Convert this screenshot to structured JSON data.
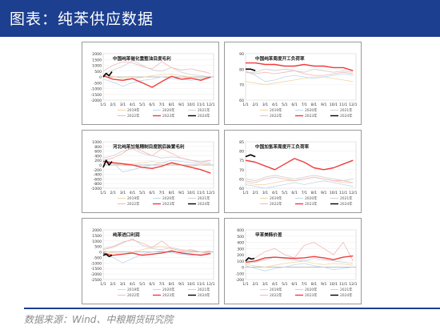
{
  "header": {
    "title": "图表：纯苯供应数据",
    "bg_color": "#1d3f8f"
  },
  "footer": {
    "source": "数据来源：Wind、中粮期货研究院"
  },
  "months": [
    "1/1",
    "2/1",
    "3/1",
    "4/1",
    "5/1",
    "6/1",
    "7/1",
    "8/1",
    "9/1",
    "10/1",
    "11/1",
    "12/1"
  ],
  "series_colors": {
    "2019年": "#f2d4a6",
    "2020年": "#bcd7ee",
    "2021年": "#d0d0d0",
    "2022年": "#f4b6b6",
    "2023年": "#f03c3c",
    "2024年": "#000000"
  },
  "chart_data": [
    {
      "type": "line",
      "title": "中国纯苯催化重整油目度毛利",
      "ylim": [
        -2000,
        2000
      ],
      "yticks": [
        2000,
        1500,
        1000,
        500,
        0,
        -500,
        -1000,
        -1500,
        -2000
      ],
      "legend": [
        "2019年",
        "2020年",
        "2021年",
        "2022年",
        "2023年",
        "2024年"
      ],
      "series": [
        {
          "name": "2019年",
          "x": [
            0,
            1,
            2,
            3,
            4,
            5,
            6,
            7,
            8,
            9,
            10,
            11
          ],
          "values": [
            150,
            50,
            -150,
            -150,
            -50,
            100,
            200,
            250,
            100,
            0,
            -100,
            -50
          ]
        },
        {
          "name": "2020年",
          "x": [
            0,
            1,
            2,
            3,
            4,
            5,
            6,
            7,
            8,
            9,
            10,
            11
          ],
          "values": [
            -200,
            -450,
            -800,
            -500,
            -300,
            -200,
            0,
            -150,
            -200,
            -300,
            -200,
            -100
          ]
        },
        {
          "name": "2021年",
          "x": [
            0,
            1,
            2,
            3,
            4,
            5,
            6,
            7,
            8,
            9,
            10,
            11
          ],
          "values": [
            200,
            600,
            900,
            1400,
            1000,
            600,
            500,
            800,
            400,
            200,
            100,
            0
          ]
        },
        {
          "name": "2022年",
          "x": [
            0,
            1,
            2,
            3,
            4,
            5,
            6,
            7,
            8,
            9,
            10,
            11
          ],
          "values": [
            500,
            1000,
            1300,
            1200,
            900,
            700,
            1300,
            800,
            600,
            700,
            500,
            300
          ]
        },
        {
          "name": "2023年",
          "x": [
            0,
            1,
            2,
            3,
            4,
            5,
            6,
            7,
            8,
            9,
            10,
            11
          ],
          "values": [
            100,
            -200,
            -300,
            -150,
            -500,
            -900,
            -400,
            50,
            -200,
            -100,
            -300,
            0
          ]
        },
        {
          "name": "2024年",
          "x": [
            0,
            0.3,
            0.6,
            0.9
          ],
          "values": [
            0,
            300,
            100,
            450
          ]
        }
      ]
    },
    {
      "type": "line",
      "title": "中国纯苯周度开工负荷率",
      "ylim": [
        60,
        90
      ],
      "yticks": [
        90,
        80,
        70,
        60
      ],
      "legend": [
        "2019年",
        "2020年",
        "2021年",
        "2022年",
        "2023年",
        "2024年"
      ],
      "series": [
        {
          "name": "2019年",
          "x": [
            0,
            1,
            2,
            3,
            4,
            5,
            6,
            7,
            8,
            9,
            10,
            11
          ],
          "values": [
            72,
            71,
            70,
            71,
            72,
            73,
            74,
            75,
            75,
            74,
            73,
            72
          ]
        },
        {
          "name": "2020年",
          "x": [
            0,
            1,
            2,
            3,
            4,
            5,
            6,
            7,
            8,
            9,
            10,
            11
          ],
          "values": [
            79,
            76,
            72,
            73,
            75,
            76,
            75,
            74,
            75,
            76,
            77,
            76
          ]
        },
        {
          "name": "2021年",
          "x": [
            0,
            1,
            2,
            3,
            4,
            5,
            6,
            7,
            8,
            9,
            10,
            11
          ],
          "values": [
            78,
            78,
            80,
            79,
            80,
            79,
            78,
            80,
            79,
            78,
            79,
            78
          ]
        },
        {
          "name": "2022年",
          "x": [
            0,
            1,
            2,
            3,
            4,
            5,
            6,
            7,
            8,
            9,
            10,
            11
          ],
          "values": [
            78,
            77,
            78,
            77,
            78,
            79,
            77,
            76,
            76,
            77,
            78,
            77
          ]
        },
        {
          "name": "2023年",
          "x": [
            0,
            1,
            2,
            3,
            4,
            5,
            6,
            7,
            8,
            9,
            10,
            11
          ],
          "values": [
            84,
            84,
            83,
            83,
            82,
            82,
            83,
            82,
            82,
            81,
            81,
            79
          ]
        },
        {
          "name": "2024年",
          "x": [
            0,
            0.5,
            1
          ],
          "values": [
            80,
            80,
            79
          ]
        }
      ]
    },
    {
      "type": "line",
      "title": "河北纯苯加氢精制目度脱后装置毛利",
      "ylim": [
        -1000,
        1000
      ],
      "yticks": [
        1000,
        800,
        600,
        400,
        200,
        0,
        -200,
        -400,
        -600,
        -800,
        -1000
      ],
      "legend": [
        "2019年",
        "2020年",
        "2021年",
        "2022年",
        "2023年",
        "2024年"
      ],
      "series": [
        {
          "name": "2019年",
          "x": [
            0,
            1,
            2,
            3,
            4,
            5,
            6,
            7,
            8,
            9,
            10,
            11
          ],
          "values": [
            100,
            50,
            0,
            50,
            100,
            150,
            100,
            50,
            0,
            -50,
            0,
            50
          ]
        },
        {
          "name": "2020年",
          "x": [
            0,
            1,
            2,
            3,
            4,
            5,
            6,
            7,
            8,
            9,
            10,
            11
          ],
          "values": [
            200,
            100,
            -300,
            -200,
            -100,
            0,
            100,
            200,
            150,
            100,
            50,
            100
          ]
        },
        {
          "name": "2021年",
          "x": [
            0,
            1,
            2,
            3,
            4,
            5,
            6,
            7,
            8,
            9,
            10,
            11
          ],
          "values": [
            300,
            400,
            600,
            700,
            500,
            400,
            300,
            350,
            300,
            200,
            150,
            200
          ]
        },
        {
          "name": "2022年",
          "x": [
            0,
            1,
            2,
            3,
            4,
            5,
            6,
            7,
            8,
            9,
            10,
            11
          ],
          "values": [
            200,
            300,
            500,
            800,
            600,
            400,
            700,
            500,
            300,
            200,
            100,
            200
          ]
        },
        {
          "name": "2023年",
          "x": [
            0,
            1,
            2,
            3,
            4,
            5,
            6,
            7,
            8,
            9,
            10,
            11
          ],
          "values": [
            150,
            100,
            50,
            0,
            -100,
            -150,
            -50,
            100,
            0,
            -100,
            -200,
            -350
          ]
        },
        {
          "name": "2024年",
          "x": [
            0,
            0.3,
            0.6,
            0.9
          ],
          "values": [
            -100,
            200,
            0,
            150
          ]
        }
      ]
    },
    {
      "type": "line",
      "title": "中国加氢苯周度开工负荷率",
      "ylim": [
        60,
        85
      ],
      "yticks": [
        85,
        80,
        75,
        70,
        65,
        60
      ],
      "legend": [
        "2019年",
        "2020年",
        "2021年",
        "2022年",
        "2023年",
        "2024年"
      ],
      "series": [
        {
          "name": "2019年",
          "x": [
            0,
            1,
            2,
            3,
            4,
            5,
            6,
            7,
            8,
            9,
            10,
            11
          ],
          "values": [
            63,
            62,
            62,
            63,
            64,
            64,
            65,
            66,
            65,
            64,
            63,
            63
          ]
        },
        {
          "name": "2020年",
          "x": [
            0,
            1,
            2,
            3,
            4,
            5,
            6,
            7,
            8,
            9,
            10,
            11
          ],
          "values": [
            62,
            61,
            60,
            61,
            62,
            63,
            62,
            63,
            64,
            63,
            62,
            61
          ]
        },
        {
          "name": "2021年",
          "x": [
            0,
            1,
            2,
            3,
            4,
            5,
            6,
            7,
            8,
            9,
            10,
            11
          ],
          "values": [
            65,
            64,
            66,
            67,
            66,
            65,
            66,
            67,
            66,
            65,
            64,
            65
          ]
        },
        {
          "name": "2022年",
          "x": [
            0,
            1,
            2,
            3,
            4,
            5,
            6,
            7,
            8,
            9,
            10,
            11
          ],
          "values": [
            64,
            63,
            65,
            66,
            65,
            64,
            65,
            66,
            65,
            64,
            64,
            63
          ]
        },
        {
          "name": "2023年",
          "x": [
            0,
            1,
            2,
            3,
            4,
            5,
            6,
            7,
            8,
            9,
            10,
            11
          ],
          "values": [
            75,
            74,
            72,
            70,
            73,
            76,
            74,
            71,
            70,
            71,
            73,
            75
          ]
        },
        {
          "name": "2024年",
          "x": [
            0,
            0.5,
            1
          ],
          "values": [
            77,
            78,
            77
          ]
        }
      ]
    },
    {
      "type": "line",
      "title": "纯苯进口利润",
      "ylim": [
        -2500,
        2000
      ],
      "yticks": [
        2000,
        1500,
        1000,
        500,
        0,
        -500,
        -1000,
        -1500,
        -2000,
        -2500
      ],
      "legend": [
        "2019年",
        "2020年",
        "2021年",
        "2022年",
        "2023年",
        "2024年"
      ],
      "series": [
        {
          "name": "2019年",
          "x": [
            0,
            1,
            2,
            3,
            4,
            5,
            6,
            7,
            8,
            9,
            10,
            11
          ],
          "values": [
            100,
            -100,
            -200,
            0,
            200,
            400,
            500,
            300,
            100,
            200,
            0,
            -100
          ]
        },
        {
          "name": "2020年",
          "x": [
            0,
            1,
            2,
            3,
            4,
            5,
            6,
            7,
            8,
            9,
            10,
            11
          ],
          "values": [
            -300,
            -500,
            -1000,
            -600,
            -200,
            0,
            100,
            -100,
            -200,
            -300,
            -200,
            -100
          ]
        },
        {
          "name": "2021年",
          "x": [
            0,
            1,
            2,
            3,
            4,
            5,
            6,
            7,
            8,
            9,
            10,
            11
          ],
          "values": [
            200,
            400,
            800,
            1200,
            600,
            300,
            200,
            400,
            200,
            100,
            0,
            -200
          ]
        },
        {
          "name": "2022年",
          "x": [
            0,
            1,
            2,
            3,
            4,
            5,
            6,
            7,
            8,
            9,
            10,
            11
          ],
          "values": [
            300,
            500,
            900,
            1100,
            800,
            400,
            1000,
            300,
            100,
            200,
            0,
            100
          ]
        },
        {
          "name": "2023年",
          "x": [
            0,
            1,
            2,
            3,
            4,
            5,
            6,
            7,
            8,
            9,
            10,
            11
          ],
          "values": [
            -100,
            -300,
            -200,
            -100,
            -300,
            -200,
            -100,
            100,
            -100,
            -200,
            -300,
            -150
          ]
        },
        {
          "name": "2024年",
          "x": [
            0,
            0.3,
            0.6,
            0.9
          ],
          "values": [
            -300,
            -200,
            -400,
            -300
          ]
        }
      ]
    },
    {
      "type": "line",
      "title": "甲苯美韩价差",
      "ylim": [
        -200,
        600
      ],
      "yticks": [
        600,
        500,
        400,
        300,
        200,
        100,
        0,
        -100,
        -200
      ],
      "legend": [
        "2019年",
        "2020年",
        "2021年",
        "2022年",
        "2023年",
        "2024年"
      ],
      "series": [
        {
          "name": "2019年",
          "x": [
            0,
            1,
            2,
            3,
            4,
            5,
            6,
            7,
            8,
            9,
            10,
            11
          ],
          "values": [
            40,
            20,
            0,
            30,
            60,
            80,
            100,
            60,
            40,
            60,
            50,
            30
          ]
        },
        {
          "name": "2020年",
          "x": [
            0,
            1,
            2,
            3,
            4,
            5,
            6,
            7,
            8,
            9,
            10,
            11
          ],
          "values": [
            20,
            -20,
            -60,
            -20,
            0,
            40,
            60,
            20,
            0,
            -40,
            -20,
            0
          ]
        },
        {
          "name": "2021年",
          "x": [
            0,
            1,
            2,
            3,
            4,
            5,
            6,
            7,
            8,
            9,
            10,
            11
          ],
          "values": [
            60,
            80,
            120,
            160,
            140,
            120,
            100,
            140,
            120,
            100,
            80,
            60
          ]
        },
        {
          "name": "2022年",
          "x": [
            0,
            1,
            2,
            3,
            4,
            5,
            6,
            7,
            8,
            9,
            10,
            11
          ],
          "values": [
            100,
            150,
            250,
            300,
            200,
            150,
            350,
            400,
            300,
            200,
            400,
            100
          ]
        },
        {
          "name": "2023年",
          "x": [
            0,
            1,
            2,
            3,
            4,
            5,
            6,
            7,
            8,
            9,
            10,
            11
          ],
          "values": [
            80,
            100,
            150,
            160,
            150,
            140,
            150,
            170,
            150,
            120,
            160,
            180
          ]
        },
        {
          "name": "2024年",
          "x": [
            0,
            0.3,
            0.6,
            0.9
          ],
          "values": [
            100,
            150,
            130,
            140
          ]
        }
      ]
    }
  ]
}
